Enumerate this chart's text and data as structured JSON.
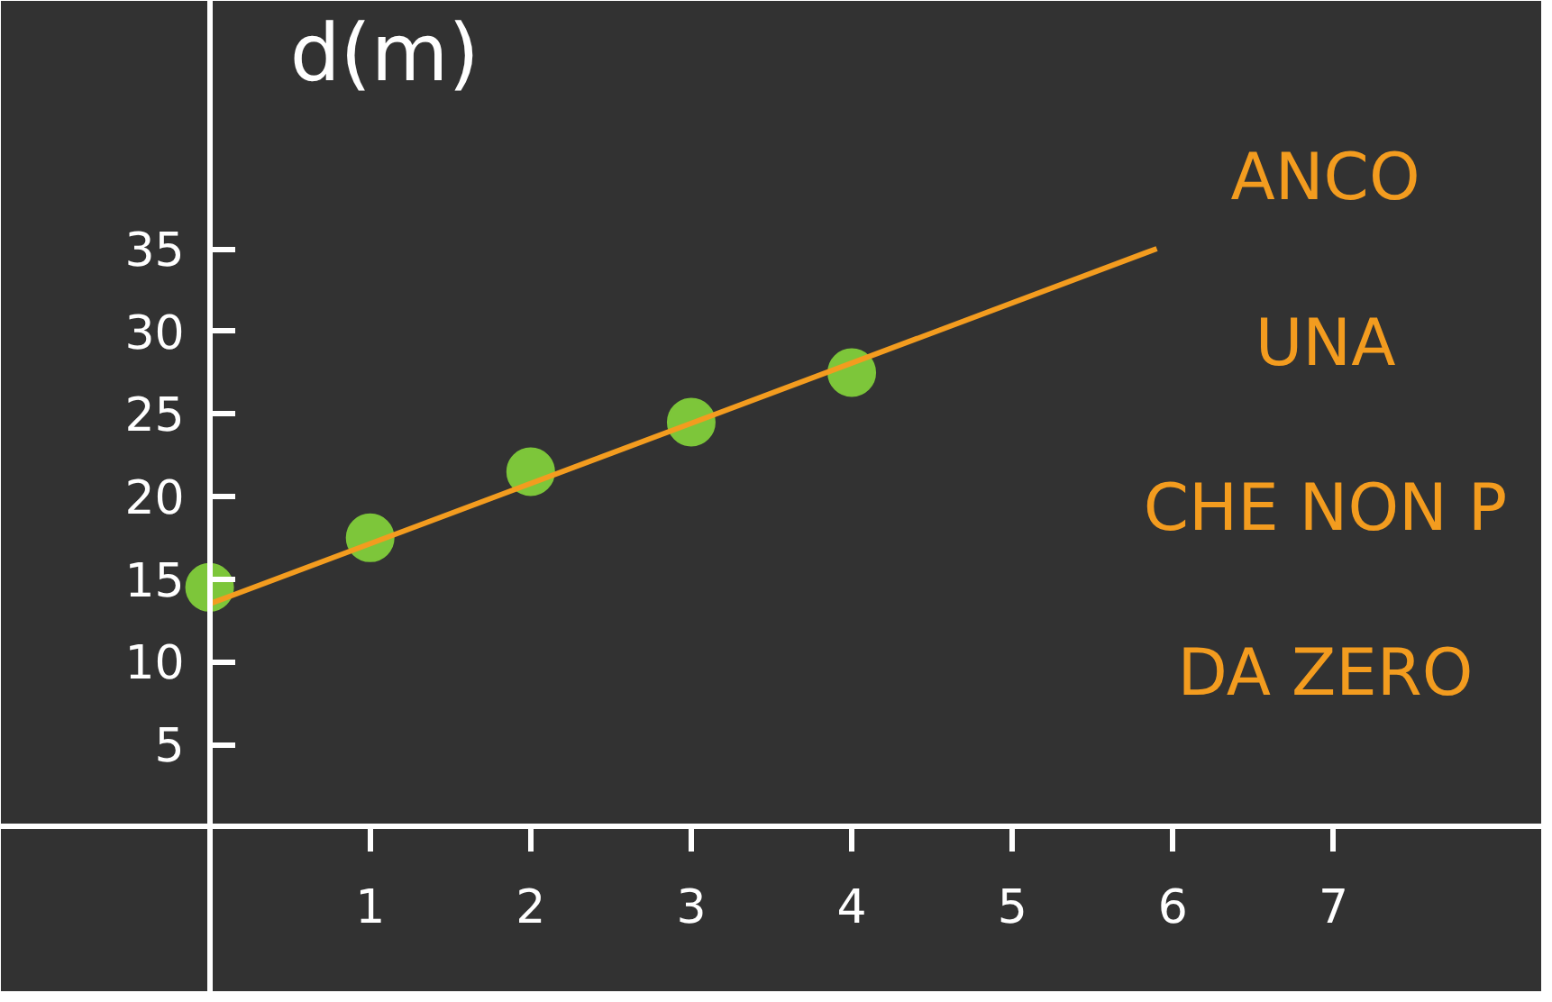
{
  "chart_data": {
    "type": "scatter",
    "ylabel": "d(m)",
    "x": [
      0,
      1,
      2,
      3,
      4
    ],
    "series": [
      {
        "color": "#7dc63a",
        "marker": "circle",
        "values": [
          14.5,
          17.5,
          21.5,
          24.5,
          27.5
        ]
      },
      {
        "type": "line",
        "color": "#f39c1f",
        "x": [
          0,
          5.9
        ],
        "values": [
          13.5,
          35
        ]
      }
    ],
    "xlim": [
      -1.3,
      8.3
    ],
    "ylim": [
      -10,
      50
    ],
    "xticks": [
      1,
      2,
      3,
      4,
      5,
      6,
      7
    ],
    "yticks": [
      5,
      10,
      15,
      20,
      25,
      30,
      35
    ],
    "annotations": [
      "ANCO",
      "UNA",
      "CHE NON P",
      "DA ZERO"
    ]
  }
}
